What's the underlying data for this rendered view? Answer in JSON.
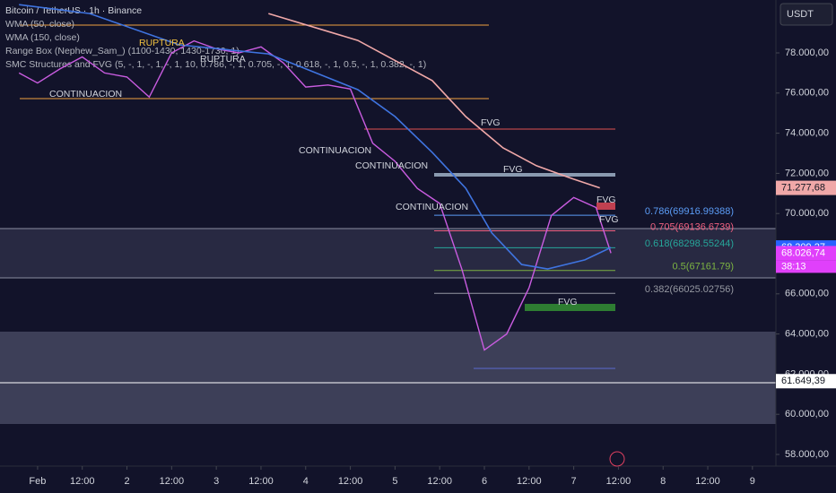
{
  "header": {
    "symbol": "USDT"
  },
  "legend": [
    "Bitcoin / TetherUS · 1h · Binance",
    "WMA (50, close)",
    "WMA (150, close)",
    "Range Box (Nephew_Sam_) (1100-1430, 1430-1730, 1)",
    "SMC Structures and FVG (5, -, 1, -, 1, -, 1, 10, 0.786, -, 1, 0.705, -, 1, 0.618, -, 1, 0.5, -, 1, 0.382, -, 1)"
  ],
  "chart_data": {
    "type": "line",
    "xlim": [
      -10.1,
      198.3
    ],
    "ylim": [
      57420,
      80634
    ],
    "xticks": [
      {
        "value": 0,
        "label": "Feb"
      },
      {
        "value": 12,
        "label": "12:00"
      },
      {
        "value": 24,
        "label": "2"
      },
      {
        "value": 36,
        "label": "12:00"
      },
      {
        "value": 48,
        "label": "3"
      },
      {
        "value": 60,
        "label": "12:00"
      },
      {
        "value": 72,
        "label": "4"
      },
      {
        "value": 84,
        "label": "12:00"
      },
      {
        "value": 96,
        "label": "5"
      },
      {
        "value": 108,
        "label": "12:00"
      },
      {
        "value": 120,
        "label": "6"
      },
      {
        "value": 132,
        "label": "12:00"
      },
      {
        "value": 144,
        "label": "7"
      },
      {
        "value": 156,
        "label": "12:00"
      },
      {
        "value": 168,
        "label": "8"
      },
      {
        "value": 180,
        "label": "12:00"
      },
      {
        "value": 192,
        "label": "9"
      }
    ],
    "yticks": [
      {
        "value": 58000,
        "label": "58.000,00"
      },
      {
        "value": 60000,
        "label": "60.000,00"
      },
      {
        "value": 62000,
        "label": "62.000,00"
      },
      {
        "value": 64000,
        "label": "64.000,00"
      },
      {
        "value": 66000,
        "label": "66.000,00"
      },
      {
        "value": 68000,
        "label": "68.000,00"
      },
      {
        "value": 70000,
        "label": "70.000,00"
      },
      {
        "value": 72000,
        "label": "72.000,00"
      },
      {
        "value": 74000,
        "label": "74.000,00"
      },
      {
        "value": 76000,
        "label": "76.000,00"
      },
      {
        "value": 78000,
        "label": "78.000,00"
      }
    ],
    "series": [
      {
        "name": "Bitcoin / TetherUS",
        "color": "#c95ce0",
        "x": [
          -5,
          0,
          6,
          12,
          18,
          24,
          30,
          36,
          42,
          48,
          54,
          60,
          66,
          72,
          78,
          84,
          90,
          96,
          102,
          108,
          114,
          120,
          126,
          132,
          138,
          144,
          150,
          154
        ],
        "values": [
          77000,
          76500,
          77200,
          77800,
          77000,
          76800,
          75800,
          78000,
          78600,
          78200,
          78000,
          78300,
          77500,
          76300,
          76400,
          76200,
          73500,
          72600,
          71250,
          70500,
          67200,
          63200,
          64000,
          66300,
          69900,
          70800,
          70300,
          68026.74
        ]
      },
      {
        "name": "WMA (50, close)",
        "color": "#3f74e0",
        "x": [
          -5,
          14,
          38,
          62,
          86,
          96,
          106,
          115,
          122,
          130,
          137,
          147,
          154
        ],
        "values": [
          80400,
          79960,
          78400,
          77950,
          76170,
          74830,
          73040,
          71260,
          69030,
          67460,
          67240,
          67690,
          68309.27
        ]
      },
      {
        "name": "WMA (150, close)",
        "color": "#f0a8a8",
        "x": [
          62,
          86,
          106,
          115,
          125,
          134,
          144,
          151
        ],
        "values": [
          79960,
          78620,
          76620,
          74830,
          73270,
          72380,
          71710,
          71277.68
        ]
      }
    ],
    "fib": [
      {
        "value": 69916.99388,
        "label": "0.786(69916.99388)",
        "color": "#5b9cf6"
      },
      {
        "value": 69136.6739,
        "label": "0.705(69136.6739)",
        "color": "#f06080"
      },
      {
        "value": 68298.55244,
        "label": "0.618(68298.55244)",
        "color": "#26a69a"
      },
      {
        "value": 67161.79,
        "label": "0.5(67161.79)",
        "color": "#7cb342"
      },
      {
        "value": 66025.02756,
        "label": "0.382(66025.02756)",
        "color": "#9598a1"
      }
    ],
    "price_labels": [
      {
        "value": 71277.68,
        "label": "71.277,68",
        "color": "#f0a8a8"
      },
      {
        "value": 68309.27,
        "label": "68.309,27",
        "color": "#2962ff"
      },
      {
        "value": 68026.74,
        "label": "68.026,74",
        "color": "#e040fb"
      },
      {
        "value": 61649.39,
        "label": "61.649,39",
        "color": "#ffffff"
      }
    ],
    "countdown": "38:13",
    "annotations": [
      "RUPTURA",
      "RUPTURA",
      "CONTINUACION",
      "CONTINUACION",
      "CONTINUACION",
      "CONTINUACION",
      "FVG",
      "FVG",
      "FVG",
      "FVG",
      "FVG"
    ]
  }
}
